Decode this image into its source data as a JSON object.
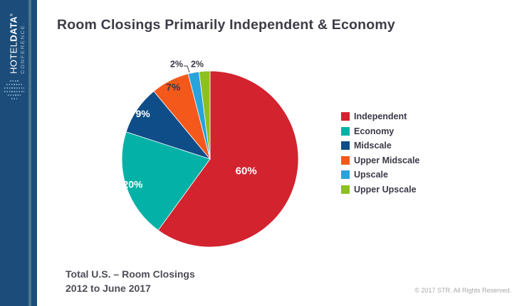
{
  "sidebar": {
    "logo": {
      "word1": "HOTEL",
      "word2": "DATA",
      "trademark": "®",
      "word3": "CONFERENCE."
    },
    "colors": {
      "background": "#1C4D7A",
      "stripe": "#4E7589"
    }
  },
  "header": {
    "title": "Room Closings Primarily Independent & Economy"
  },
  "chart_data": {
    "type": "pie",
    "title": "Room Closings Primarily Independent & Economy",
    "categories": [
      "Independent",
      "Economy",
      "Midscale",
      "Upper Midscale",
      "Upscale",
      "Upper Upscale"
    ],
    "values": [
      60,
      20,
      9,
      7,
      2,
      2
    ],
    "unit": "%",
    "slice_colors": [
      "#D2232F",
      "#04B1A7",
      "#0E4D87",
      "#F4581A",
      "#29A3DC",
      "#8CC021"
    ],
    "data_label_colors": [
      "#FFFFFF",
      "#FFFFFF",
      "#FFFFFF",
      "#3A3A48",
      "#3A3A48",
      "#3A3A48"
    ],
    "legend_position": "right",
    "rotation": "clockwise-from-12-oclock",
    "slice_border_color": "#FFFFFF"
  },
  "footnote": {
    "line1": "Total U.S. – Room Closings",
    "line2": "2012 to June 2017"
  },
  "copyright": "© 2017 STR. All Rights Reserved."
}
